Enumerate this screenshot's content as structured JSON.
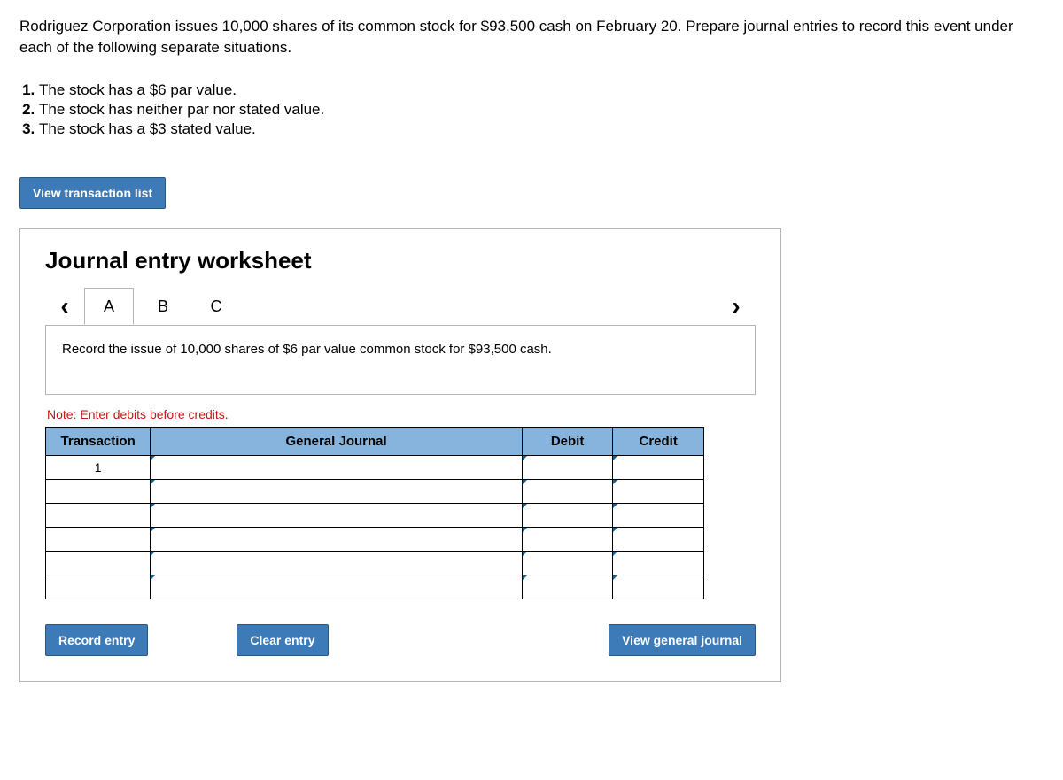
{
  "problem": {
    "intro": "Rodriguez Corporation issues 10,000 shares of its common stock for $93,500 cash on February 20. Prepare journal entries to record this event under each of the following separate situations.",
    "situations": [
      "The stock has a $6 par value.",
      "The stock has neither par nor stated value.",
      "The stock has a $3 stated value."
    ]
  },
  "buttons": {
    "view_list": "View transaction list",
    "record": "Record entry",
    "clear": "Clear entry",
    "view_journal": "View general journal"
  },
  "worksheet": {
    "title": "Journal entry worksheet",
    "tabs": [
      "A",
      "B",
      "C"
    ],
    "active_tab": "A",
    "note": "Record the issue of 10,000 shares of $6 par value common stock for $93,500 cash.",
    "credit_note": "Note: Enter debits before credits.",
    "columns": {
      "transaction": "Transaction",
      "general_journal": "General Journal",
      "debit": "Debit",
      "credit": "Credit"
    },
    "first_transaction": "1",
    "row_count": 6
  },
  "colors": {
    "button_bg": "#3d7ab8",
    "header_bg": "#86b4dd",
    "border": "#b5b5b5",
    "note_red": "#c01818"
  }
}
